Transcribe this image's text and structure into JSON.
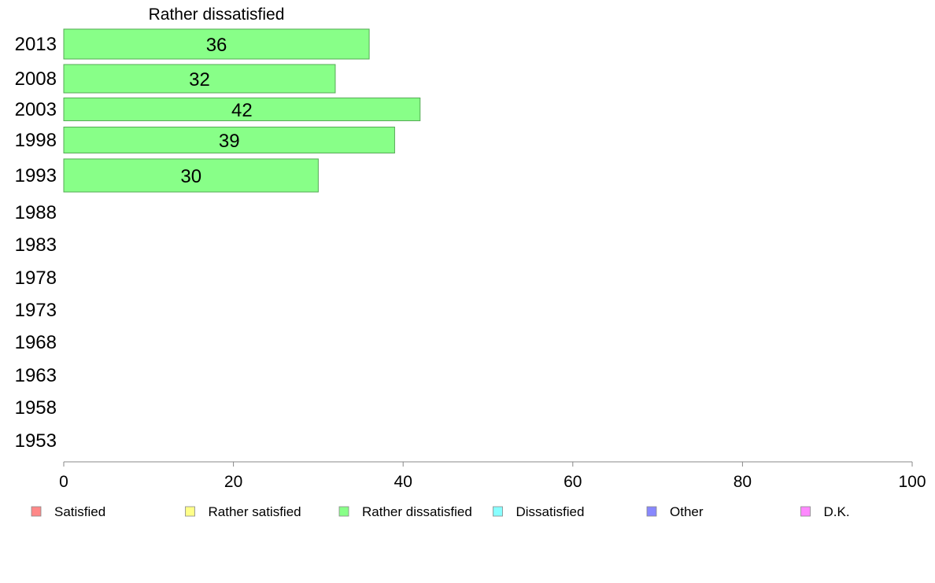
{
  "chart_data": {
    "type": "bar",
    "orientation": "horizontal",
    "title": "Rather dissatisfied",
    "categories": [
      "2013",
      "2008",
      "2003",
      "1998",
      "1993",
      "1988",
      "1983",
      "1978",
      "1973",
      "1968",
      "1963",
      "1958",
      "1953"
    ],
    "series": [
      {
        "name": "Rather dissatisfied",
        "color": "#88ff88",
        "values": [
          36,
          32,
          42,
          39,
          30,
          null,
          null,
          null,
          null,
          null,
          null,
          null,
          null
        ]
      }
    ],
    "xlim": [
      0,
      100
    ],
    "xticks": [
      0,
      20,
      40,
      60,
      80,
      100
    ],
    "grid": false,
    "legend": {
      "position": "bottom",
      "items": [
        {
          "label": "Satisfied",
          "color": "#ff8888"
        },
        {
          "label": "Rather satisfied",
          "color": "#ffff88"
        },
        {
          "label": "Rather dissatisfied",
          "color": "#88ff88"
        },
        {
          "label": "Dissatisfied",
          "color": "#88ffff"
        },
        {
          "label": "Other",
          "color": "#8888ff"
        },
        {
          "label": "D.K.",
          "color": "#ff88ff"
        }
      ]
    }
  }
}
